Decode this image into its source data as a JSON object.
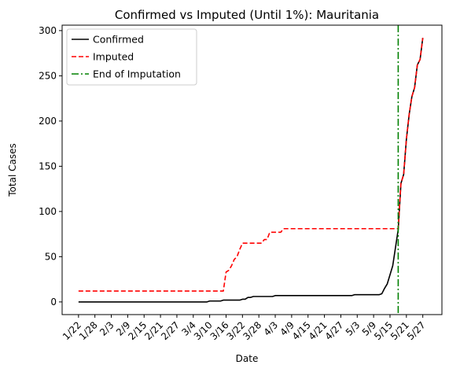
{
  "chart_data": {
    "type": "line",
    "title": "Confirmed vs Imputed (Until 1%): Mauritania",
    "xlabel": "Date",
    "ylabel": "Total Cases",
    "x_start_date": "2020-01-22",
    "x_tick_labels": [
      "1/22",
      "1/28",
      "2/3",
      "2/9",
      "2/15",
      "2/21",
      "2/27",
      "3/4",
      "3/10",
      "3/16",
      "3/22",
      "3/28",
      "4/3",
      "4/9",
      "4/15",
      "4/21",
      "4/27",
      "5/3",
      "5/9",
      "5/15",
      "5/21",
      "5/27"
    ],
    "y_ticks": [
      0,
      50,
      100,
      150,
      200,
      250,
      300
    ],
    "ylim": [
      -14,
      306
    ],
    "xlim": [
      -6,
      133
    ],
    "grid": false,
    "legend_position": "top-left",
    "series": [
      {
        "name": "Confirmed",
        "color": "#000000",
        "style": "solid",
        "points": [
          [
            0,
            0
          ],
          [
            47,
            0
          ],
          [
            48,
            1
          ],
          [
            49,
            1
          ],
          [
            50,
            1
          ],
          [
            51,
            1
          ],
          [
            52,
            1
          ],
          [
            53,
            2
          ],
          [
            54,
            2
          ],
          [
            55,
            2
          ],
          [
            56,
            2
          ],
          [
            57,
            2
          ],
          [
            58,
            2
          ],
          [
            59,
            2
          ],
          [
            60,
            3
          ],
          [
            61,
            3
          ],
          [
            62,
            5
          ],
          [
            63,
            5
          ],
          [
            64,
            6
          ],
          [
            65,
            6
          ],
          [
            66,
            6
          ],
          [
            67,
            6
          ],
          [
            68,
            6
          ],
          [
            69,
            6
          ],
          [
            70,
            6
          ],
          [
            71,
            6
          ],
          [
            72,
            7
          ],
          [
            100,
            7
          ],
          [
            101,
            8
          ],
          [
            105,
            8
          ],
          [
            110,
            8
          ],
          [
            111,
            9
          ],
          [
            112,
            15
          ],
          [
            113,
            20
          ],
          [
            114,
            30
          ],
          [
            115,
            40
          ],
          [
            116,
            60
          ],
          [
            117,
            80
          ],
          [
            118,
            131
          ],
          [
            119,
            141
          ],
          [
            120,
            180
          ],
          [
            121,
            207
          ],
          [
            122,
            227
          ],
          [
            123,
            237
          ],
          [
            124,
            262
          ],
          [
            125,
            268
          ],
          [
            126,
            292
          ]
        ]
      },
      {
        "name": "Imputed",
        "color": "#ff0000",
        "style": "dashed",
        "points": [
          [
            0,
            12
          ],
          [
            53,
            12
          ],
          [
            54,
            33
          ],
          [
            55,
            35
          ],
          [
            56,
            40
          ],
          [
            57,
            47
          ],
          [
            58,
            50
          ],
          [
            59,
            58
          ],
          [
            60,
            65
          ],
          [
            67,
            65
          ],
          [
            68,
            69
          ],
          [
            69,
            69
          ],
          [
            70,
            77
          ],
          [
            74,
            77
          ],
          [
            75,
            81
          ],
          [
            117,
            81
          ],
          [
            118,
            131
          ],
          [
            119,
            141
          ],
          [
            120,
            180
          ],
          [
            121,
            207
          ],
          [
            122,
            227
          ],
          [
            123,
            237
          ],
          [
            124,
            262
          ],
          [
            125,
            268
          ],
          [
            126,
            292
          ]
        ]
      },
      {
        "name": "End of Imputation",
        "color": "#008000",
        "style": "dashdot",
        "vertical_x": 117
      }
    ]
  }
}
